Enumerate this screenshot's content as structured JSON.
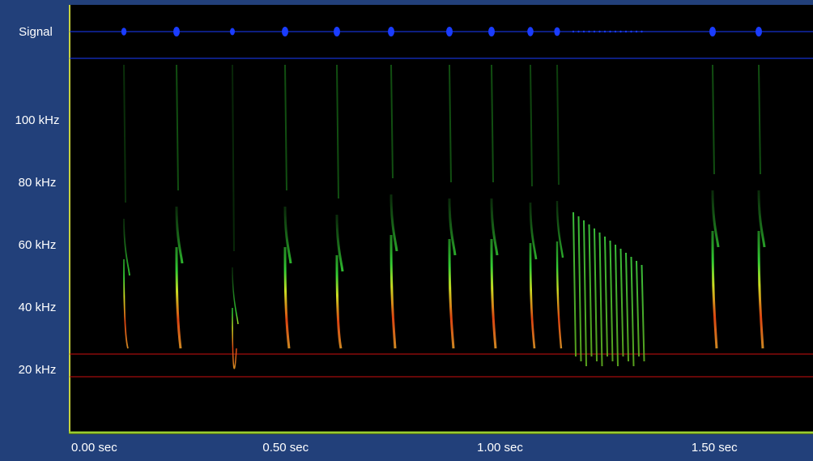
{
  "chart_data": {
    "type": "spectrogram",
    "signal_label": "Signal",
    "xlim": [
      0,
      1.73
    ],
    "xticks": [
      {
        "value": 0,
        "label": "0.00 sec"
      },
      {
        "value": 0.5,
        "label": "0.50 sec"
      },
      {
        "value": 1,
        "label": "1.00 sec"
      },
      {
        "value": 1.5,
        "label": "1.50 sec"
      }
    ],
    "ylim": [
      0,
      120
    ],
    "yticks": [
      {
        "value": 20,
        "label": "20 kHz"
      },
      {
        "value": 40,
        "label": "40 kHz"
      },
      {
        "value": 60,
        "label": "60 kHz"
      },
      {
        "value": 80,
        "label": "80 kHz"
      },
      {
        "value": 100,
        "label": "100 kHz"
      }
    ]
  }
}
